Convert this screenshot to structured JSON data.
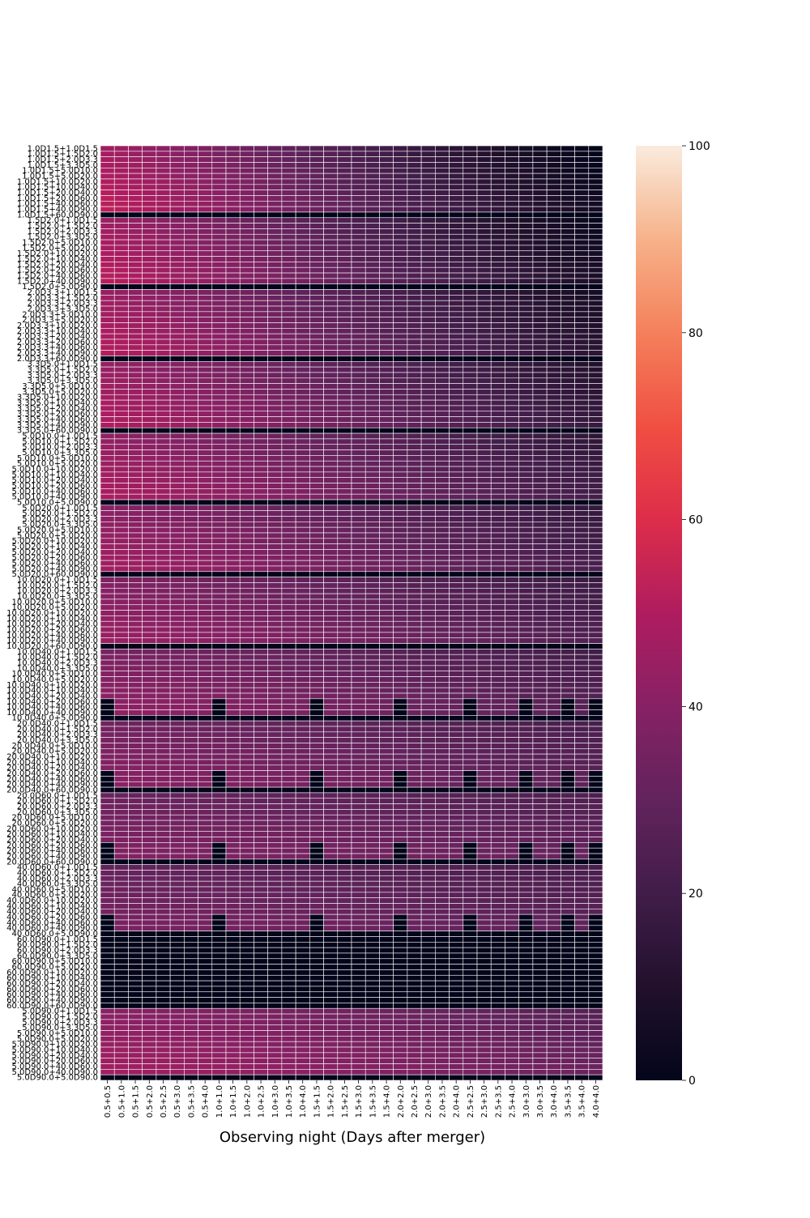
{
  "chart_data": {
    "type": "heatmap",
    "title": "",
    "xlabel": "Observing night (Days after merger)",
    "ylabel": "",
    "x_tick_labels": [
      "0.5+0.5",
      "0.5+1.0",
      "0.5+1.5",
      "0.5+2.0",
      "0.5+2.5",
      "0.5+3.0",
      "0.5+3.5",
      "0.5+4.0",
      "1.0+1.0",
      "1.0+1.5",
      "1.0+2.0",
      "1.0+2.5",
      "1.0+3.0",
      "1.0+3.5",
      "1.0+4.0",
      "1.5+1.5",
      "1.5+2.0",
      "1.5+2.5",
      "1.5+3.0",
      "1.5+3.5",
      "1.5+4.0",
      "2.0+2.0",
      "2.0+2.5",
      "2.0+3.0",
      "2.0+3.5",
      "2.0+4.0",
      "2.5+2.5",
      "2.5+3.0",
      "2.5+3.5",
      "2.5+4.0",
      "3.0+3.0",
      "3.0+3.5",
      "3.0+4.0",
      "3.5+3.5",
      "3.5+4.0",
      "4.0+4.0"
    ],
    "y_tick_labels": [
      "1.0D1.5+1.0D1.5",
      "1.0D1.5+1.5D2.0",
      "1.0D1.5+2.0D3.3",
      "1.0D1.5+3.3D5.0",
      "1.0D1.5+5.0D10.0",
      "1.0D1.5+5.0D20.0",
      "1.0D1.5+10.0D20.0",
      "1.0D1.5+10.0D40.0",
      "1.0D1.5+20.0D40.0",
      "1.0D1.5+20.0D60.0",
      "1.0D1.5+40.0D60.0",
      "1.0D1.5+40.0D90.0",
      "1.0D1.5+60.0D90.0",
      "1.5D2.0+1.0D1.5",
      "1.5D2.0+1.5D2.0",
      "1.5D2.0+2.0D3.3",
      "1.5D2.0+3.3D5.0",
      "1.5D2.0+5.0D10.0",
      "1.5D2.0+5.0D20.0",
      "1.5D2.0+10.0D20.0",
      "1.5D2.0+10.0D40.0",
      "1.5D2.0+20.0D40.0",
      "1.5D2.0+20.0D60.0",
      "1.5D2.0+40.0D60.0",
      "1.5D2.0+40.0D90.0",
      "1.5D2.0+5.0D90.0",
      "2.0D3.3+1.0D1.5",
      "2.0D3.3+1.5D2.0",
      "2.0D3.3+2.0D3.3",
      "2.0D3.3+3.3D5.0",
      "2.0D3.3+5.0D10.0",
      "2.0D3.3+5.0D20.0",
      "2.0D3.3+10.0D20.0",
      "2.0D3.3+10.0D40.0",
      "2.0D3.3+20.0D40.0",
      "2.0D3.3+20.0D60.0",
      "2.0D3.3+40.0D60.0",
      "2.0D3.3+40.0D90.0",
      "2.0D3.3+60.0D90.0",
      "3.3D5.0+1.0D1.5",
      "3.3D5.0+1.5D2.0",
      "3.3D5.0+2.0D3.3",
      "3.3D5.0+3.3D5.0",
      "3.3D5.0+5.0D10.0",
      "3.3D5.0+5.0D20.0",
      "3.3D5.0+10.0D20.0",
      "3.3D5.0+10.0D40.0",
      "3.3D5.0+20.0D40.0",
      "3.3D5.0+20.0D60.0",
      "3.3D5.0+40.0D60.0",
      "3.3D5.0+40.0D90.0",
      "3.3D5.0+60.0D90.0",
      "5.0D10.0+1.0D1.5",
      "5.0D10.0+1.5D2.0",
      "5.0D10.0+2.0D3.3",
      "5.0D10.0+3.3D5.0",
      "5.0D10.0+5.0D10.0",
      "5.0D10.0+5.0D20.0",
      "5.0D10.0+10.0D20.0",
      "5.0D10.0+10.0D40.0",
      "5.0D10.0+20.0D40.0",
      "5.0D10.0+20.0D60.0",
      "5.0D10.0+40.0D60.0",
      "5.0D10.0+40.0D90.0",
      "5.0D10.0+5.0D90.0",
      "5.0D20.0+1.0D1.5",
      "5.0D20.0+1.5D2.0",
      "5.0D20.0+2.0D3.3",
      "5.0D20.0+3.3D5.0",
      "5.0D20.0+5.0D10.0",
      "5.0D20.0+5.0D20.0",
      "5.0D20.0+10.0D20.0",
      "5.0D20.0+10.0D40.0",
      "5.0D20.0+20.0D40.0",
      "5.0D20.0+20.0D60.0",
      "5.0D20.0+40.0D60.0",
      "5.0D20.0+40.0D90.0",
      "5.0D20.0+60.0D90.0",
      "10.0D20.0+1.0D1.5",
      "10.0D20.0+1.5D2.0",
      "10.0D20.0+2.0D3.3",
      "10.0D20.0+3.3D5.0",
      "10.0D20.0+5.0D10.0",
      "10.0D20.0+5.0D20.0",
      "10.0D20.0+10.0D20.0",
      "10.0D20.0+10.0D40.0",
      "10.0D20.0+20.0D40.0",
      "10.0D20.0+20.0D60.0",
      "10.0D20.0+40.0D60.0",
      "10.0D20.0+40.0D90.0",
      "10.0D20.0+60.0D90.0",
      "10.0D40.0+1.0D1.5",
      "10.0D40.0+1.5D2.0",
      "10.0D40.0+2.0D3.3",
      "10.0D40.0+3.3D5.0",
      "10.0D40.0+5.0D10.0",
      "10.0D40.0+5.0D20.0",
      "10.0D40.0+10.0D20.0",
      "10.0D40.0+10.0D40.0",
      "10.0D40.0+20.0D40.0",
      "10.0D40.0+20.0D60.0",
      "10.0D40.0+40.0D60.0",
      "10.0D40.0+40.0D90.0",
      "10.0D40.0+5.0D90.0",
      "20.0D40.0+1.0D1.5",
      "20.0D40.0+1.5D2.0",
      "20.0D40.0+2.0D3.3",
      "20.0D40.0+3.3D5.0",
      "20.0D40.0+5.0D10.0",
      "20.0D40.0+5.0D20.0",
      "20.0D40.0+10.0D20.0",
      "20.0D40.0+10.0D40.0",
      "20.0D40.0+20.0D40.0",
      "20.0D40.0+20.0D60.0",
      "20.0D40.0+40.0D60.0",
      "20.0D40.0+40.0D90.0",
      "20.0D40.0+60.0D90.0",
      "20.0D60.0+1.0D1.5",
      "20.0D60.0+1.5D2.0",
      "20.0D60.0+2.0D3.3",
      "20.0D60.0+3.3D5.0",
      "20.0D60.0+5.0D10.0",
      "20.0D60.0+5.0D20.0",
      "20.0D60.0+10.0D20.0",
      "20.0D60.0+10.0D40.0",
      "20.0D60.0+20.0D40.0",
      "20.0D60.0+20.0D60.0",
      "20.0D60.0+40.0D60.0",
      "20.0D60.0+40.0D90.0",
      "20.0D60.0+60.0D90.0",
      "40.0D60.0+1.0D1.5",
      "40.0D60.0+1.5D2.0",
      "40.0D60.0+2.0D3.3",
      "40.0D60.0+3.3D5.0",
      "40.0D60.0+5.0D10.0",
      "40.0D60.0+5.0D20.0",
      "40.0D60.0+10.0D20.0",
      "40.0D60.0+10.0D40.0",
      "40.0D60.0+20.0D40.0",
      "40.0D60.0+20.0D60.0",
      "40.0D60.0+40.0D60.0",
      "40.0D60.0+40.0D90.0",
      "40.0D60.0+5.0D90.0",
      "60.0D90.0+1.0D1.5",
      "60.0D90.0+1.5D2.0",
      "60.0D90.0+2.0D3.3",
      "60.0D90.0+3.3D5.0",
      "60.0D90.0+5.0D10.0",
      "60.0D90.0+5.0D20.0",
      "60.0D90.0+10.0D20.0",
      "60.0D90.0+10.0D40.0",
      "60.0D90.0+20.0D40.0",
      "60.0D90.0+20.0D60.0",
      "60.0D90.0+40.0D60.0",
      "60.0D90.0+40.0D90.0",
      "60.0D90.0+60.0D90.0",
      "5.0D90.0+1.0D1.5",
      "5.0D90.0+1.5D2.0",
      "5.0D90.0+2.0D3.3",
      "5.0D90.0+3.3D5.0",
      "5.0D90.0+5.0D10.0",
      "5.0D90.0+5.0D20.0",
      "5.0D90.0+10.0D20.0",
      "5.0D90.0+10.0D40.0",
      "5.0D90.0+20.0D40.0",
      "5.0D90.0+20.0D60.0",
      "5.0D90.0+40.0D60.0",
      "5.0D90.0+40.0D90.0",
      "5.0D90.0+5.0D90.0"
    ],
    "values_summary": {
      "group_start_values": [
        50,
        49,
        48,
        47,
        46,
        44,
        42,
        40,
        38,
        36,
        34,
        0,
        44
      ],
      "group_end_values": [
        3,
        6,
        10,
        14,
        18,
        20,
        22,
        24,
        26,
        28,
        26,
        0,
        30
      ],
      "group_last_row_zero": true,
      "zero_column_indices_in_lower_groups": [
        0,
        8,
        15,
        21,
        26,
        30,
        33,
        35
      ]
    },
    "colorbar": {
      "min": 0,
      "max": 100,
      "ticks": [
        0,
        20,
        40,
        60,
        80,
        100
      ],
      "colormap": "rocket"
    },
    "vlim": [
      0,
      100
    ],
    "grid": true
  },
  "colors": {
    "background": "#ffffff",
    "cell_border": "#ffffff",
    "text": "#000000"
  }
}
